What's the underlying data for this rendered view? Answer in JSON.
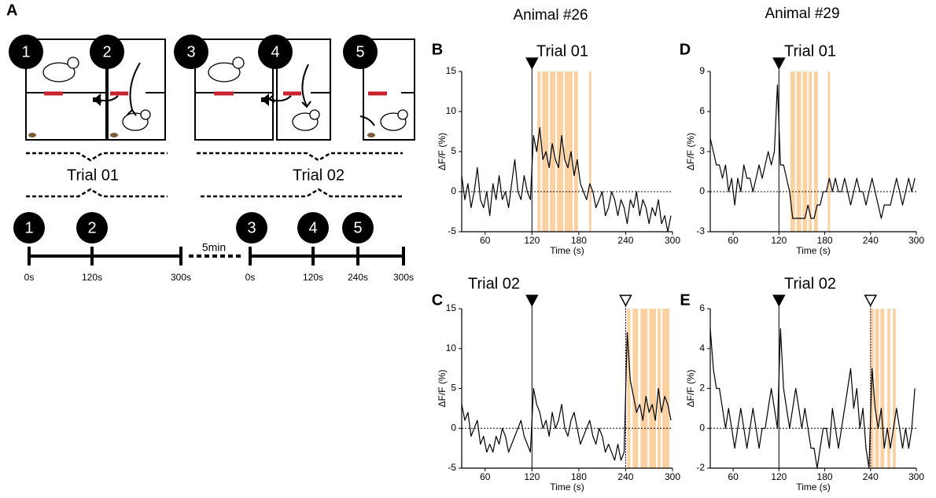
{
  "panel_a": {
    "label": "A",
    "steps": [
      "1",
      "2",
      "3",
      "4",
      "5"
    ],
    "trials": [
      "Trial 01",
      "Trial 02"
    ],
    "timeline_steps": [
      "1",
      "2",
      "3",
      "4",
      "5"
    ],
    "gap": "5min",
    "timeline_labels": [
      "0s",
      "120s",
      "300s",
      "0s",
      "120s",
      "240s",
      "300s"
    ]
  },
  "column_titles": [
    "Animal #26",
    "Animal #29"
  ],
  "chart_data": [
    {
      "type": "line",
      "panel": "B",
      "title": "Trial 01",
      "xlabel": "Time (s)",
      "ylabel": "ΔF/F (%)",
      "x": [
        30,
        34,
        38,
        42,
        46,
        50,
        54,
        58,
        62,
        66,
        70,
        74,
        78,
        82,
        86,
        90,
        94,
        98,
        102,
        106,
        110,
        114,
        118,
        122,
        126,
        130,
        134,
        138,
        142,
        146,
        150,
        154,
        158,
        162,
        166,
        170,
        174,
        178,
        182,
        186,
        190,
        194,
        198,
        202,
        206,
        210,
        214,
        218,
        222,
        226,
        230,
        234,
        238,
        242,
        246,
        250,
        254,
        258,
        262,
        266,
        270,
        274,
        278,
        282,
        286,
        290,
        294,
        298
      ],
      "series": [
        {
          "color": "#000000",
          "values": [
            2,
            -1,
            1,
            -2,
            0,
            3,
            -1,
            -2,
            0,
            -3,
            1,
            -1,
            2,
            -1,
            0,
            -2,
            1,
            4,
            0,
            -1,
            2,
            0,
            -1,
            7,
            5,
            8,
            4,
            5,
            3,
            6,
            4,
            3,
            7,
            4,
            3,
            5,
            2,
            4,
            1,
            0,
            -1,
            1,
            0,
            -2,
            -1,
            0,
            -3,
            -2,
            0,
            -1,
            -3,
            -1,
            -2,
            -4,
            -1,
            -2,
            0,
            -3,
            -1,
            -2,
            -4,
            -2,
            -3,
            -1,
            -4,
            -3,
            -5,
            -3
          ]
        }
      ],
      "xlim": [
        30,
        300
      ],
      "ylim": [
        -5,
        15
      ],
      "xticks": [
        60,
        120,
        180,
        240,
        300
      ],
      "yticks": [
        -5,
        0,
        5,
        10,
        15
      ],
      "markers": [
        {
          "x": 120,
          "fill": "filled"
        }
      ],
      "shaded": [
        [
          127,
          131
        ],
        [
          133,
          141
        ],
        [
          143,
          150
        ],
        [
          152,
          160
        ],
        [
          162,
          172
        ],
        [
          174,
          179
        ],
        [
          193,
          196
        ]
      ],
      "shade_color": "#fbd1a2",
      "zero_line": true
    },
    {
      "type": "line",
      "panel": "C",
      "title": "Trial 02",
      "xlabel": "Time (s)",
      "ylabel": "ΔF/F (%)",
      "x": [
        30,
        34,
        38,
        42,
        46,
        50,
        54,
        58,
        62,
        66,
        70,
        74,
        78,
        82,
        86,
        90,
        94,
        98,
        102,
        106,
        110,
        114,
        118,
        122,
        126,
        130,
        134,
        138,
        142,
        146,
        150,
        154,
        158,
        162,
        166,
        170,
        174,
        178,
        182,
        186,
        190,
        194,
        198,
        202,
        206,
        210,
        214,
        218,
        222,
        226,
        230,
        234,
        238,
        242,
        246,
        250,
        254,
        258,
        262,
        266,
        270,
        274,
        278,
        282,
        286,
        290,
        294,
        298
      ],
      "series": [
        {
          "color": "#000000",
          "values": [
            3,
            1,
            2,
            -1,
            0,
            1,
            -2,
            -1,
            -3,
            -2,
            -3,
            -1,
            -2,
            0,
            -1,
            -3,
            -2,
            -1,
            0,
            1,
            -1,
            -2,
            -3,
            5,
            3,
            2,
            0,
            1,
            -1,
            2,
            0,
            1,
            3,
            0,
            -1,
            1,
            2,
            0,
            -2,
            -1,
            0,
            1,
            -1,
            -2,
            0,
            -1,
            -3,
            -2,
            -3,
            -4,
            -2,
            -4,
            -3,
            12,
            6,
            4,
            2,
            3,
            1,
            4,
            2,
            3,
            1,
            5,
            2,
            4,
            3,
            1
          ]
        }
      ],
      "xlim": [
        30,
        300
      ],
      "ylim": [
        -5,
        15
      ],
      "xticks": [
        60,
        120,
        180,
        240,
        300
      ],
      "yticks": [
        -5,
        0,
        5,
        10,
        15
      ],
      "markers": [
        {
          "x": 120,
          "fill": "filled"
        },
        {
          "x": 240,
          "fill": "open"
        }
      ],
      "shaded": [
        [
          242,
          246
        ],
        [
          249,
          256
        ],
        [
          259,
          268
        ],
        [
          270,
          279
        ],
        [
          281,
          285
        ],
        [
          287,
          296
        ]
      ],
      "shade_color": "#fbd1a2",
      "zero_line": true
    },
    {
      "type": "line",
      "panel": "D",
      "title": "Trial 01",
      "xlabel": "Time (s)",
      "ylabel": "ΔF/F (%)",
      "x": [
        30,
        34,
        38,
        42,
        46,
        50,
        54,
        58,
        62,
        66,
        70,
        74,
        78,
        82,
        86,
        90,
        94,
        98,
        102,
        106,
        110,
        114,
        118,
        122,
        126,
        130,
        134,
        138,
        142,
        146,
        150,
        154,
        158,
        162,
        166,
        170,
        174,
        178,
        182,
        186,
        190,
        194,
        198,
        202,
        206,
        210,
        214,
        218,
        222,
        226,
        230,
        234,
        238,
        242,
        246,
        250,
        254,
        258,
        262,
        266,
        270,
        274,
        278,
        282,
        286,
        290,
        294,
        298
      ],
      "series": [
        {
          "color": "#000000",
          "values": [
            4,
            3,
            2,
            2,
            1,
            2,
            0,
            1,
            -1,
            1,
            0,
            2,
            1,
            1,
            0,
            1,
            2,
            1,
            2,
            3,
            2,
            3,
            8,
            2,
            2,
            1,
            0,
            -2,
            -2,
            -2,
            -2,
            -2,
            -1,
            -2,
            -2,
            -1,
            -1,
            0,
            0,
            1,
            0,
            1,
            0,
            0,
            1,
            0,
            -1,
            0,
            1,
            0,
            0,
            -1,
            0,
            1,
            0,
            -1,
            -2,
            -1,
            -1,
            -1,
            0,
            1,
            0,
            -1,
            0,
            1,
            0,
            1
          ]
        }
      ],
      "xlim": [
        30,
        300
      ],
      "ylim": [
        -3,
        9
      ],
      "xticks": [
        60,
        120,
        180,
        240,
        300
      ],
      "yticks": [
        -3,
        0,
        3,
        6,
        9
      ],
      "markers": [
        {
          "x": 120,
          "fill": "filled"
        }
      ],
      "shaded": [
        [
          135,
          141
        ],
        [
          143,
          149
        ],
        [
          151,
          157
        ],
        [
          159,
          163
        ],
        [
          166,
          171
        ],
        [
          184,
          187
        ]
      ],
      "shade_color": "#fbd1a2",
      "zero_line": true
    },
    {
      "type": "line",
      "panel": "E",
      "title": "Trial 02",
      "xlabel": "Time (s)",
      "ylabel": "ΔF/F (%)",
      "x": [
        30,
        34,
        38,
        42,
        46,
        50,
        54,
        58,
        62,
        66,
        70,
        74,
        78,
        82,
        86,
        90,
        94,
        98,
        102,
        106,
        110,
        114,
        118,
        122,
        126,
        130,
        134,
        138,
        142,
        146,
        150,
        154,
        158,
        162,
        166,
        170,
        174,
        178,
        182,
        186,
        190,
        194,
        198,
        202,
        206,
        210,
        214,
        218,
        222,
        226,
        230,
        234,
        238,
        242,
        246,
        250,
        254,
        258,
        262,
        266,
        270,
        274,
        278,
        282,
        286,
        290,
        294,
        298
      ],
      "series": [
        {
          "color": "#000000",
          "values": [
            5,
            3,
            2,
            2,
            1,
            0,
            1,
            0,
            -1,
            0,
            1,
            0,
            -1,
            0,
            1,
            0,
            -1,
            0,
            0,
            1,
            2,
            1,
            0,
            5,
            2,
            1,
            0,
            1,
            2,
            1,
            0,
            1,
            0,
            -1,
            -1,
            -2,
            -1,
            0,
            0,
            -1,
            1,
            0,
            -1,
            0,
            1,
            2,
            3,
            1,
            2,
            0,
            1,
            -1,
            -2,
            3,
            1,
            0,
            1,
            -1,
            0,
            -1,
            0,
            1,
            0,
            -1,
            0,
            -1,
            0,
            2
          ]
        }
      ],
      "xlim": [
        30,
        300
      ],
      "ylim": [
        -2,
        6
      ],
      "xticks": [
        60,
        120,
        180,
        240,
        300
      ],
      "yticks": [
        -2,
        0,
        2,
        4,
        6
      ],
      "markers": [
        {
          "x": 120,
          "fill": "filled"
        },
        {
          "x": 240,
          "fill": "open"
        }
      ],
      "shaded": [
        [
          240,
          244
        ],
        [
          246,
          251
        ],
        [
          253,
          258
        ],
        [
          262,
          266
        ],
        [
          269,
          273
        ]
      ],
      "shade_color": "#fbd1a2",
      "zero_line": true
    }
  ]
}
